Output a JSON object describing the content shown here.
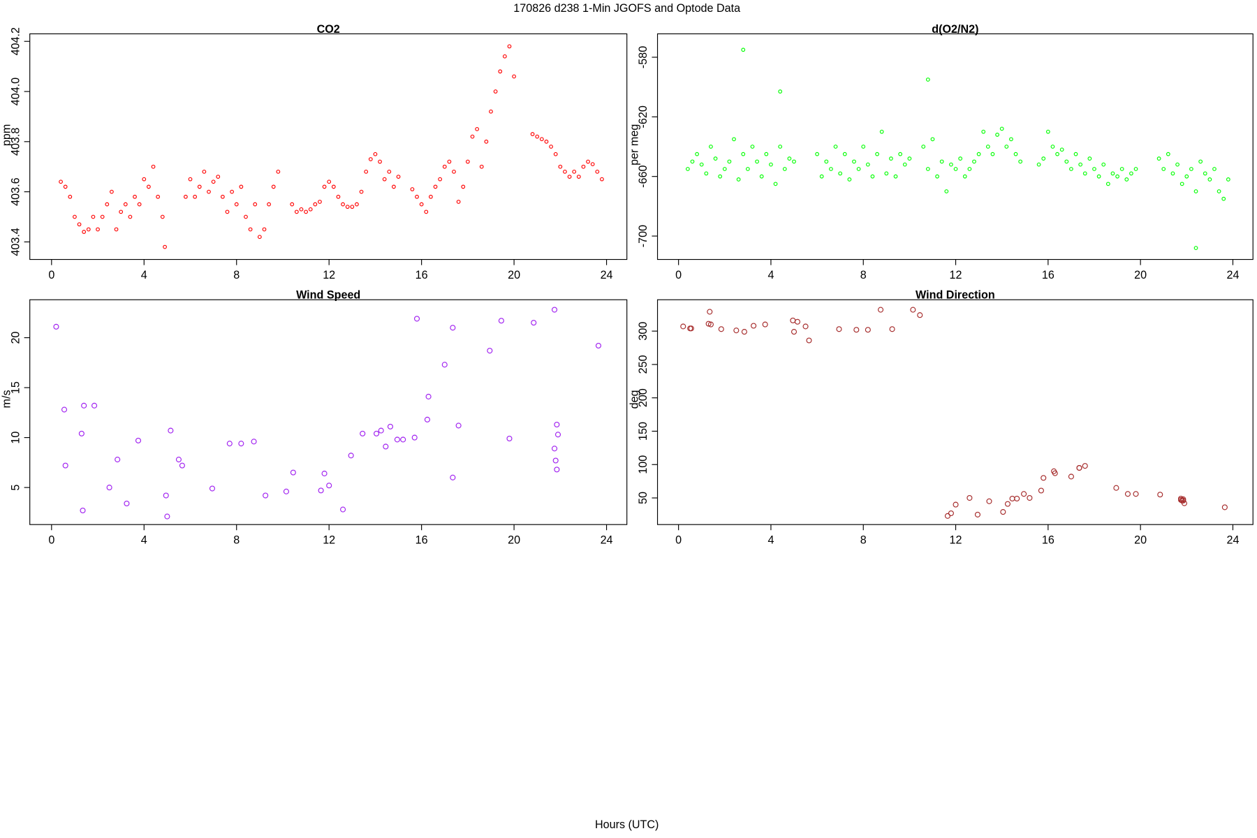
{
  "title": "170826   d238   1-Min  JGOFS and Optode Data",
  "xlabel": "Hours (UTC)",
  "chart_data": [
    {
      "type": "scatter",
      "title": "CO2",
      "ylabel": "ppm",
      "color": "#ff0000",
      "xlim": [
        -0.94,
        24.88
      ],
      "xticks": [
        0,
        4,
        8,
        12,
        16,
        20,
        24
      ],
      "ylim": [
        403.33,
        404.23
      ],
      "yticks": [
        403.4,
        403.6,
        403.8,
        {
          "value": 404,
          "label": "404.0"
        },
        404.2
      ],
      "x": [
        0.4,
        0.6,
        0.8,
        1.0,
        1.2,
        1.4,
        1.6,
        1.8,
        2.0,
        2.2,
        2.4,
        2.6,
        2.8,
        3.0,
        3.2,
        3.4,
        3.6,
        3.8,
        4.0,
        4.2,
        4.4,
        4.6,
        4.8,
        4.9,
        5.8,
        6.0,
        6.2,
        6.4,
        6.6,
        6.8,
        7.0,
        7.2,
        7.4,
        7.6,
        7.8,
        8.0,
        8.2,
        8.4,
        8.6,
        8.8,
        9.0,
        9.2,
        9.4,
        9.6,
        9.8,
        10.4,
        10.6,
        10.8,
        11.0,
        11.2,
        11.4,
        11.6,
        11.8,
        12.0,
        12.2,
        12.4,
        12.6,
        12.8,
        13.0,
        13.2,
        13.4,
        13.6,
        13.8,
        14.0,
        14.2,
        14.4,
        14.6,
        14.8,
        15.0,
        15.6,
        15.8,
        16.0,
        16.2,
        16.4,
        16.6,
        16.8,
        17.0,
        17.2,
        17.4,
        17.6,
        17.8,
        18.0,
        18.2,
        18.4,
        18.6,
        18.8,
        19.0,
        19.2,
        19.4,
        19.6,
        19.8,
        20.0,
        20.8,
        21.0,
        21.2,
        21.4,
        21.6,
        21.8,
        22.0,
        22.2,
        22.4,
        22.6,
        22.8,
        23.0,
        23.2,
        23.4,
        23.6,
        23.8
      ],
      "values": [
        403.64,
        403.62,
        403.58,
        403.5,
        403.47,
        403.44,
        403.45,
        403.5,
        403.45,
        403.5,
        403.55,
        403.6,
        403.45,
        403.52,
        403.55,
        403.5,
        403.58,
        403.55,
        403.65,
        403.62,
        403.7,
        403.58,
        403.5,
        403.38,
        403.58,
        403.65,
        403.58,
        403.62,
        403.68,
        403.6,
        403.64,
        403.66,
        403.58,
        403.52,
        403.6,
        403.55,
        403.62,
        403.5,
        403.45,
        403.55,
        403.42,
        403.45,
        403.55,
        403.62,
        403.68,
        403.55,
        403.52,
        403.53,
        403.52,
        403.53,
        403.55,
        403.56,
        403.62,
        403.64,
        403.62,
        403.58,
        403.55,
        403.54,
        403.54,
        403.55,
        403.6,
        403.68,
        403.73,
        403.75,
        403.72,
        403.65,
        403.68,
        403.62,
        403.66,
        403.61,
        403.58,
        403.55,
        403.52,
        403.58,
        403.62,
        403.65,
        403.7,
        403.72,
        403.68,
        403.56,
        403.62,
        403.72,
        403.82,
        403.85,
        403.7,
        403.8,
        403.92,
        404.0,
        404.08,
        404.14,
        404.18,
        404.06,
        403.83,
        403.82,
        403.81,
        403.8,
        403.78,
        403.75,
        403.7,
        403.68,
        403.66,
        403.68,
        403.66,
        403.7,
        403.72,
        403.71,
        403.68,
        403.65
      ]
    },
    {
      "type": "scatter",
      "title": "d(O2/N2)",
      "ylabel": "per meg",
      "color": "#00ff00",
      "xlim": [
        -0.91,
        24.87
      ],
      "xticks": [
        0,
        4,
        8,
        12,
        16,
        20,
        24
      ],
      "ylim": [
        -715.7,
        -564.3
      ],
      "yticks": [
        -580,
        -620,
        -660,
        -700
      ],
      "x": [
        0.4,
        0.6,
        0.8,
        1.0,
        1.2,
        1.4,
        1.6,
        1.8,
        2.0,
        2.2,
        2.4,
        2.6,
        2.8,
        2.8,
        3.0,
        3.2,
        3.4,
        3.6,
        3.8,
        4.0,
        4.2,
        4.4,
        4.4,
        4.6,
        4.8,
        5.0,
        6.0,
        6.2,
        6.4,
        6.6,
        6.8,
        7.0,
        7.2,
        7.4,
        7.6,
        7.8,
        8.0,
        8.2,
        8.4,
        8.6,
        8.8,
        9.0,
        9.2,
        9.4,
        9.6,
        9.8,
        10.0,
        10.6,
        10.8,
        10.8,
        11.0,
        11.2,
        11.4,
        11.6,
        11.8,
        12.0,
        12.2,
        12.4,
        12.6,
        12.8,
        13.0,
        13.2,
        13.4,
        13.6,
        13.8,
        14.0,
        14.2,
        14.4,
        14.6,
        14.8,
        15.6,
        15.8,
        16.0,
        16.2,
        16.4,
        16.6,
        16.8,
        17.0,
        17.2,
        17.4,
        17.6,
        17.8,
        18.0,
        18.2,
        18.4,
        18.6,
        18.8,
        19.0,
        19.2,
        19.4,
        19.6,
        19.8,
        20.8,
        21.0,
        21.2,
        21.4,
        21.6,
        21.8,
        22.0,
        22.2,
        22.4,
        22.4,
        22.6,
        22.8,
        23.0,
        23.2,
        23.4,
        23.6,
        23.8
      ],
      "values": [
        -655,
        -650,
        -645,
        -652,
        -658,
        -640,
        -648,
        -660,
        -655,
        -650,
        -635,
        -662,
        -645,
        -575,
        -655,
        -640,
        -650,
        -660,
        -645,
        -652,
        -665,
        -640,
        -603,
        -655,
        -648,
        -650,
        -645,
        -660,
        -650,
        -655,
        -640,
        -658,
        -645,
        -662,
        -650,
        -655,
        -640,
        -652,
        -660,
        -645,
        -630,
        -658,
        -648,
        -660,
        -645,
        -652,
        -648,
        -640,
        -655,
        -595,
        -635,
        -660,
        -650,
        -670,
        -652,
        -655,
        -648,
        -660,
        -655,
        -650,
        -645,
        -630,
        -640,
        -645,
        -632,
        -628,
        -640,
        -635,
        -645,
        -650,
        -652,
        -648,
        -630,
        -640,
        -645,
        -642,
        -650,
        -655,
        -645,
        -652,
        -658,
        -648,
        -655,
        -660,
        -652,
        -665,
        -658,
        -660,
        -655,
        -662,
        -658,
        -655,
        -648,
        -655,
        -645,
        -658,
        -652,
        -665,
        -660,
        -655,
        -670,
        -708,
        -650,
        -658,
        -662,
        -655,
        -670,
        -675,
        -662
      ]
    },
    {
      "type": "scatter",
      "title": "Wind Speed",
      "ylabel": "m/s",
      "color": "#a020f0",
      "xlim": [
        -0.94,
        24.88
      ],
      "xticks": [
        0,
        4,
        8,
        12,
        16,
        20,
        24
      ],
      "ylim": [
        1.29,
        23.8
      ],
      "yticks": [
        5,
        10,
        15,
        20
      ],
      "x": [
        0.2,
        0.55,
        0.6,
        1.3,
        1.35,
        1.4,
        1.85,
        2.5,
        2.85,
        3.25,
        3.75,
        4.95,
        5.0,
        5.15,
        5.5,
        5.65,
        6.95,
        7.7,
        8.2,
        8.75,
        9.25,
        10.15,
        10.45,
        11.65,
        11.8,
        12.0,
        12.6,
        12.95,
        13.45,
        14.05,
        14.25,
        14.45,
        14.65,
        14.95,
        15.2,
        15.7,
        15.8,
        16.25,
        16.3,
        17.0,
        17.35,
        17.35,
        17.6,
        18.95,
        19.45,
        19.8,
        20.85,
        21.75,
        21.75,
        21.8,
        21.85,
        21.85,
        21.9,
        23.65
      ],
      "values": [
        21.1,
        12.8,
        7.2,
        10.4,
        2.7,
        13.2,
        13.2,
        5.0,
        7.8,
        3.4,
        9.7,
        4.2,
        2.1,
        10.7,
        7.8,
        7.2,
        4.9,
        9.4,
        9.4,
        9.6,
        4.2,
        4.6,
        6.5,
        4.7,
        6.4,
        5.2,
        2.8,
        8.2,
        10.4,
        10.4,
        10.7,
        9.1,
        11.1,
        9.8,
        9.8,
        10.0,
        21.9,
        11.8,
        14.1,
        17.3,
        21.0,
        6.0,
        11.2,
        18.7,
        21.7,
        9.9,
        21.5,
        22.8,
        8.9,
        7.7,
        11.3,
        6.8,
        10.3,
        19.2
      ]
    },
    {
      "type": "scatter",
      "title": "Wind Direction",
      "ylabel": "deg",
      "color": "#a52a2a",
      "xlim": [
        -0.91,
        24.87
      ],
      "xticks": [
        0,
        4,
        8,
        12,
        16,
        20,
        24
      ],
      "ylim": [
        10.1,
        347
      ],
      "yticks": [
        50,
        100,
        150,
        200,
        250,
        300
      ],
      "x": [
        0.2,
        0.5,
        0.55,
        1.3,
        1.35,
        1.4,
        1.85,
        2.5,
        2.85,
        3.25,
        3.75,
        4.95,
        5.0,
        5.15,
        5.5,
        5.65,
        6.95,
        7.7,
        8.2,
        8.75,
        9.25,
        10.15,
        10.45,
        11.65,
        11.8,
        12.0,
        12.6,
        12.95,
        13.45,
        14.05,
        14.25,
        14.45,
        14.65,
        14.95,
        15.2,
        15.7,
        15.8,
        16.25,
        16.3,
        17.0,
        17.35,
        17.35,
        17.6,
        18.95,
        19.45,
        19.8,
        20.85,
        21.75,
        21.75,
        21.8,
        21.85,
        21.85,
        21.9,
        23.65
      ],
      "values": [
        307,
        304,
        304,
        311,
        329,
        310,
        303,
        301,
        299,
        308,
        310,
        316,
        299,
        314,
        307,
        286,
        303,
        302,
        302,
        332,
        303,
        332,
        324,
        23,
        27,
        40,
        50,
        25,
        45,
        29,
        41,
        49,
        49,
        56,
        50,
        61,
        80,
        90,
        87,
        82,
        95,
        95,
        98,
        65,
        56,
        56,
        55,
        49,
        47,
        46,
        48,
        46,
        42,
        36
      ]
    }
  ]
}
